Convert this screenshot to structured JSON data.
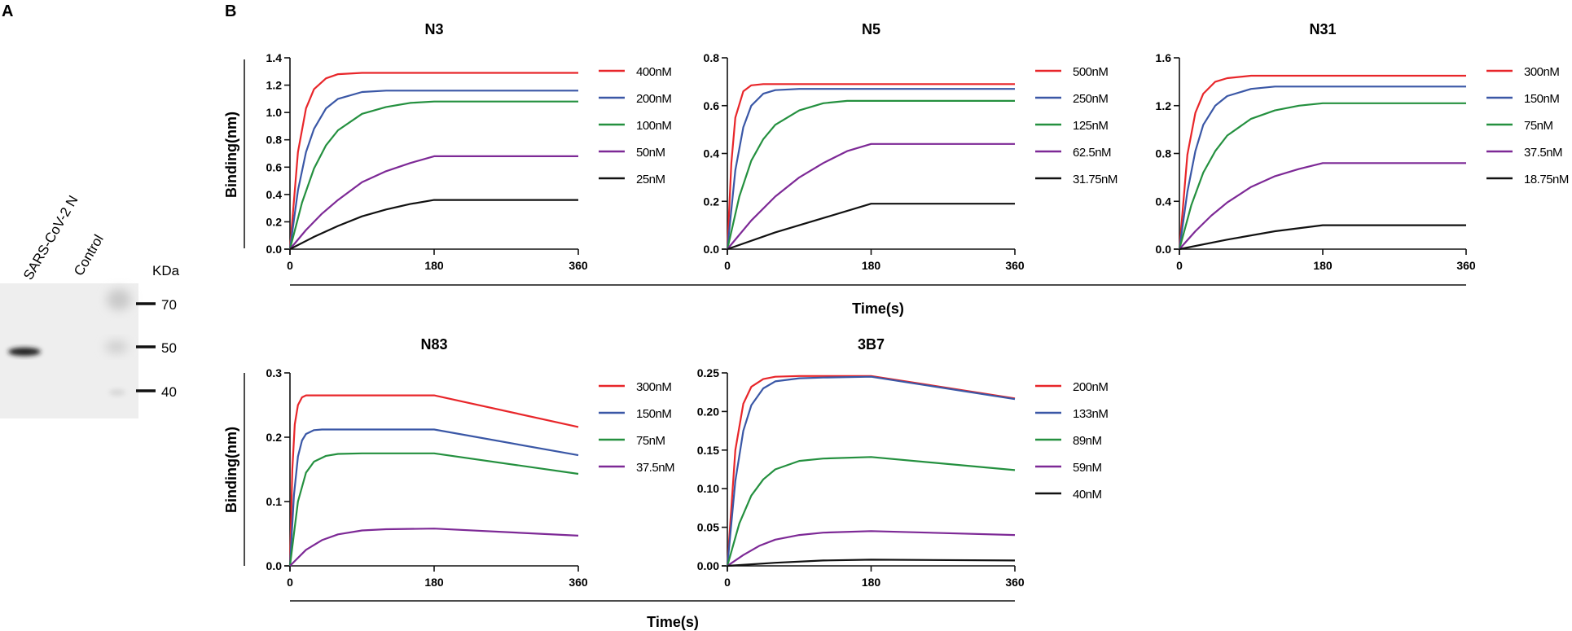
{
  "panel_a": {
    "label": "A",
    "lanes": [
      "SARS-CoV-2 N",
      "Control"
    ],
    "unit": "KDa",
    "markers": [
      "70",
      "50",
      "40"
    ]
  },
  "panel_b": {
    "label": "B",
    "shared_xlabel": "Time(s)",
    "shared_ylabel": "Binding(nm)"
  },
  "colors": {
    "red": "#e8262a",
    "blue": "#3a57a6",
    "green": "#24903f",
    "purple": "#7d2996",
    "black": "#111111"
  },
  "chart_data": [
    {
      "type": "line",
      "title": "N3",
      "xlabel": "Time(s)",
      "ylabel": "Binding(nm)",
      "xlim": [
        0,
        360
      ],
      "ylim": [
        0,
        1.4
      ],
      "xticks": [
        "0",
        "180",
        "360"
      ],
      "yticks": [
        "0.0",
        "0.2",
        "0.4",
        "0.6",
        "0.8",
        "1.0",
        "1.2",
        "1.4"
      ],
      "series": [
        {
          "name": "400nM",
          "color": "red",
          "points": [
            [
              0,
              0
            ],
            [
              10,
              0.71
            ],
            [
              20,
              1.03
            ],
            [
              30,
              1.17
            ],
            [
              45,
              1.25
            ],
            [
              60,
              1.28
            ],
            [
              90,
              1.29
            ],
            [
              180,
              1.29
            ],
            [
              360,
              1.29
            ]
          ]
        },
        {
          "name": "200nM",
          "color": "blue",
          "points": [
            [
              0,
              0
            ],
            [
              10,
              0.43
            ],
            [
              20,
              0.71
            ],
            [
              30,
              0.88
            ],
            [
              45,
              1.03
            ],
            [
              60,
              1.1
            ],
            [
              90,
              1.15
            ],
            [
              120,
              1.16
            ],
            [
              180,
              1.16
            ],
            [
              360,
              1.16
            ]
          ]
        },
        {
          "name": "100nM",
          "color": "green",
          "points": [
            [
              0,
              0
            ],
            [
              15,
              0.34
            ],
            [
              30,
              0.59
            ],
            [
              45,
              0.76
            ],
            [
              60,
              0.87
            ],
            [
              90,
              0.99
            ],
            [
              120,
              1.04
            ],
            [
              150,
              1.07
            ],
            [
              180,
              1.08
            ],
            [
              360,
              1.08
            ]
          ]
        },
        {
          "name": "50nM",
          "color": "purple",
          "points": [
            [
              0,
              0
            ],
            [
              20,
              0.14
            ],
            [
              40,
              0.26
            ],
            [
              60,
              0.36
            ],
            [
              90,
              0.49
            ],
            [
              120,
              0.57
            ],
            [
              150,
              0.63
            ],
            [
              180,
              0.68
            ],
            [
              360,
              0.68
            ]
          ]
        },
        {
          "name": "25nM",
          "color": "black",
          "points": [
            [
              0,
              0
            ],
            [
              30,
              0.09
            ],
            [
              60,
              0.17
            ],
            [
              90,
              0.24
            ],
            [
              120,
              0.29
            ],
            [
              150,
              0.33
            ],
            [
              180,
              0.36
            ],
            [
              360,
              0.36
            ]
          ]
        }
      ]
    },
    {
      "type": "line",
      "title": "N5",
      "xlabel": "Time(s)",
      "ylabel": "Binding(nm)",
      "xlim": [
        0,
        360
      ],
      "ylim": [
        0,
        0.8
      ],
      "xticks": [
        "0",
        "180",
        "360"
      ],
      "yticks": [
        "0.0",
        "0.2",
        "0.4",
        "0.6",
        "0.8"
      ],
      "series": [
        {
          "name": "500nM",
          "color": "red",
          "points": [
            [
              0,
              0
            ],
            [
              5,
              0.36
            ],
            [
              10,
              0.55
            ],
            [
              20,
              0.66
            ],
            [
              30,
              0.685
            ],
            [
              45,
              0.69
            ],
            [
              180,
              0.69
            ],
            [
              360,
              0.69
            ]
          ]
        },
        {
          "name": "250nM",
          "color": "blue",
          "points": [
            [
              0,
              0
            ],
            [
              10,
              0.33
            ],
            [
              20,
              0.51
            ],
            [
              30,
              0.6
            ],
            [
              45,
              0.65
            ],
            [
              60,
              0.665
            ],
            [
              90,
              0.67
            ],
            [
              180,
              0.67
            ],
            [
              360,
              0.67
            ]
          ]
        },
        {
          "name": "125nM",
          "color": "green",
          "points": [
            [
              0,
              0
            ],
            [
              15,
              0.22
            ],
            [
              30,
              0.37
            ],
            [
              45,
              0.46
            ],
            [
              60,
              0.52
            ],
            [
              90,
              0.58
            ],
            [
              120,
              0.61
            ],
            [
              150,
              0.62
            ],
            [
              180,
              0.62
            ],
            [
              360,
              0.62
            ]
          ]
        },
        {
          "name": "62.5nM",
          "color": "purple",
          "points": [
            [
              0,
              0
            ],
            [
              30,
              0.12
            ],
            [
              60,
              0.22
            ],
            [
              90,
              0.3
            ],
            [
              120,
              0.36
            ],
            [
              150,
              0.41
            ],
            [
              180,
              0.44
            ],
            [
              360,
              0.44
            ]
          ]
        },
        {
          "name": "31.75nM",
          "color": "black",
          "points": [
            [
              0,
              0
            ],
            [
              60,
              0.07
            ],
            [
              120,
              0.13
            ],
            [
              180,
              0.19
            ],
            [
              360,
              0.19
            ]
          ]
        }
      ]
    },
    {
      "type": "line",
      "title": "N31",
      "xlabel": "Time(s)",
      "ylabel": "Binding(nm)",
      "xlim": [
        0,
        360
      ],
      "ylim": [
        0,
        1.6
      ],
      "xticks": [
        "0",
        "180",
        "360"
      ],
      "yticks": [
        "0.0",
        "0.4",
        "0.8",
        "1.2",
        "1.6"
      ],
      "series": [
        {
          "name": "300nM",
          "color": "red",
          "points": [
            [
              0,
              0
            ],
            [
              10,
              0.79
            ],
            [
              20,
              1.14
            ],
            [
              30,
              1.3
            ],
            [
              45,
              1.4
            ],
            [
              60,
              1.43
            ],
            [
              90,
              1.45
            ],
            [
              180,
              1.45
            ],
            [
              360,
              1.45
            ]
          ]
        },
        {
          "name": "150nM",
          "color": "blue",
          "points": [
            [
              0,
              0
            ],
            [
              10,
              0.48
            ],
            [
              20,
              0.82
            ],
            [
              30,
              1.04
            ],
            [
              45,
              1.2
            ],
            [
              60,
              1.28
            ],
            [
              90,
              1.34
            ],
            [
              120,
              1.36
            ],
            [
              180,
              1.36
            ],
            [
              360,
              1.36
            ]
          ]
        },
        {
          "name": "75nM",
          "color": "green",
          "points": [
            [
              0,
              0
            ],
            [
              15,
              0.37
            ],
            [
              30,
              0.64
            ],
            [
              45,
              0.82
            ],
            [
              60,
              0.95
            ],
            [
              90,
              1.09
            ],
            [
              120,
              1.16
            ],
            [
              150,
              1.2
            ],
            [
              180,
              1.22
            ],
            [
              360,
              1.22
            ]
          ]
        },
        {
          "name": "37.5nM",
          "color": "purple",
          "points": [
            [
              0,
              0
            ],
            [
              20,
              0.15
            ],
            [
              40,
              0.28
            ],
            [
              60,
              0.39
            ],
            [
              90,
              0.52
            ],
            [
              120,
              0.61
            ],
            [
              150,
              0.67
            ],
            [
              180,
              0.72
            ],
            [
              360,
              0.72
            ]
          ]
        },
        {
          "name": "18.75nM",
          "color": "black",
          "points": [
            [
              0,
              0
            ],
            [
              60,
              0.08
            ],
            [
              120,
              0.15
            ],
            [
              180,
              0.2
            ],
            [
              360,
              0.2
            ]
          ]
        }
      ]
    },
    {
      "type": "line",
      "title": "N83",
      "xlabel": "Time(s)",
      "ylabel": "Binding(nm)",
      "xlim": [
        0,
        360
      ],
      "ylim": [
        0,
        0.3
      ],
      "xticks": [
        "0",
        "180",
        "360"
      ],
      "yticks": [
        "0.0",
        "0.1",
        "0.2",
        "0.3"
      ],
      "series": [
        {
          "name": "300nM",
          "color": "red",
          "points": [
            [
              0,
              0
            ],
            [
              3,
              0.15
            ],
            [
              6,
              0.22
            ],
            [
              10,
              0.25
            ],
            [
              15,
              0.262
            ],
            [
              20,
              0.265
            ],
            [
              180,
              0.265
            ],
            [
              360,
              0.216
            ]
          ]
        },
        {
          "name": "150nM",
          "color": "blue",
          "points": [
            [
              0,
              0
            ],
            [
              5,
              0.11
            ],
            [
              10,
              0.17
            ],
            [
              15,
              0.195
            ],
            [
              20,
              0.205
            ],
            [
              30,
              0.211
            ],
            [
              40,
              0.212
            ],
            [
              180,
              0.212
            ],
            [
              360,
              0.172
            ]
          ]
        },
        {
          "name": "75nM",
          "color": "green",
          "points": [
            [
              0,
              0
            ],
            [
              10,
              0.1
            ],
            [
              20,
              0.145
            ],
            [
              30,
              0.162
            ],
            [
              45,
              0.171
            ],
            [
              60,
              0.174
            ],
            [
              90,
              0.175
            ],
            [
              180,
              0.175
            ],
            [
              360,
              0.143
            ]
          ]
        },
        {
          "name": "37.5nM",
          "color": "purple",
          "points": [
            [
              0,
              0
            ],
            [
              20,
              0.025
            ],
            [
              40,
              0.04
            ],
            [
              60,
              0.049
            ],
            [
              90,
              0.055
            ],
            [
              120,
              0.057
            ],
            [
              180,
              0.058
            ],
            [
              360,
              0.047
            ]
          ]
        }
      ]
    },
    {
      "type": "line",
      "title": "3B7",
      "xlabel": "Time(s)",
      "ylabel": "Binding(nm)",
      "xlim": [
        0,
        360
      ],
      "ylim": [
        0,
        0.25
      ],
      "xticks": [
        "0",
        "180",
        "360"
      ],
      "yticks": [
        "0.00",
        "0.05",
        "0.10",
        "0.15",
        "0.20",
        "0.25"
      ],
      "series": [
        {
          "name": "200nM",
          "color": "red",
          "points": [
            [
              0,
              0
            ],
            [
              10,
              0.15
            ],
            [
              20,
              0.21
            ],
            [
              30,
              0.232
            ],
            [
              45,
              0.242
            ],
            [
              60,
              0.245
            ],
            [
              90,
              0.246
            ],
            [
              180,
              0.246
            ],
            [
              360,
              0.217
            ]
          ]
        },
        {
          "name": "133nM",
          "color": "blue",
          "points": [
            [
              0,
              0
            ],
            [
              10,
              0.11
            ],
            [
              20,
              0.175
            ],
            [
              30,
              0.208
            ],
            [
              45,
              0.23
            ],
            [
              60,
              0.239
            ],
            [
              90,
              0.243
            ],
            [
              120,
              0.244
            ],
            [
              180,
              0.245
            ],
            [
              360,
              0.216
            ]
          ]
        },
        {
          "name": "89nM",
          "color": "green",
          "points": [
            [
              0,
              0
            ],
            [
              15,
              0.055
            ],
            [
              30,
              0.091
            ],
            [
              45,
              0.112
            ],
            [
              60,
              0.125
            ],
            [
              90,
              0.136
            ],
            [
              120,
              0.139
            ],
            [
              180,
              0.141
            ],
            [
              360,
              0.124
            ]
          ]
        },
        {
          "name": "59nM",
          "color": "purple",
          "points": [
            [
              0,
              0
            ],
            [
              20,
              0.014
            ],
            [
              40,
              0.026
            ],
            [
              60,
              0.034
            ],
            [
              90,
              0.04
            ],
            [
              120,
              0.043
            ],
            [
              180,
              0.045
            ],
            [
              360,
              0.04
            ]
          ]
        },
        {
          "name": "40nM",
          "color": "black",
          "points": [
            [
              0,
              0
            ],
            [
              30,
              0.002
            ],
            [
              60,
              0.004
            ],
            [
              120,
              0.007
            ],
            [
              180,
              0.008
            ],
            [
              360,
              0.007
            ]
          ]
        }
      ]
    }
  ]
}
